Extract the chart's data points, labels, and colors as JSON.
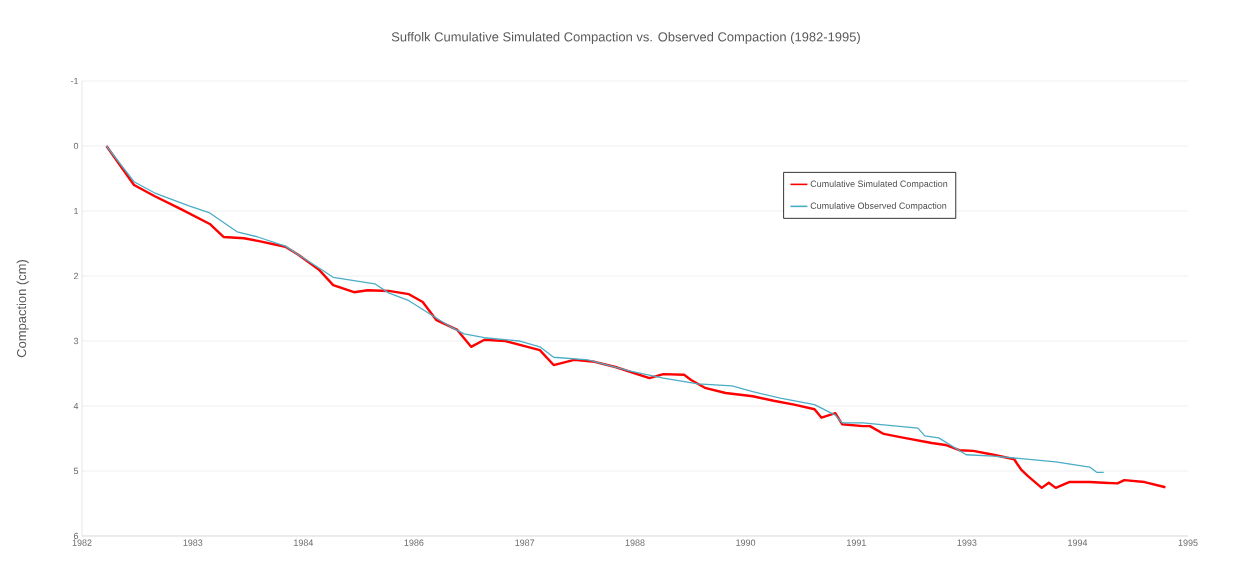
{
  "chart_data": {
    "type": "line",
    "title": "Suffolk Cumulative Simulated Compaction vs. Observed Compaction (1982-1995)",
    "ylabel": "Compaction (cm)",
    "xlim": [
      "1982-04-15",
      "1995-09-09"
    ],
    "xticks": [
      {
        "value": "1982-04-15",
        "label": "1982"
      },
      {
        "value": "1983-08-18",
        "label": "1983"
      },
      {
        "value": "1984-12-20",
        "label": "1984"
      },
      {
        "value": "1986-04-23",
        "label": "1986"
      },
      {
        "value": "1987-08-26",
        "label": "1987"
      },
      {
        "value": "1988-12-27",
        "label": "1988"
      },
      {
        "value": "1990-04-30",
        "label": "1990"
      },
      {
        "value": "1991-09-02",
        "label": "1991"
      },
      {
        "value": "1993-01-04",
        "label": "1993"
      },
      {
        "value": "1994-05-08",
        "label": "1994"
      },
      {
        "value": "1995-09-09",
        "label": "1995"
      }
    ],
    "ylim": [
      6,
      -1
    ],
    "yticks": [
      -1,
      0,
      1,
      2,
      3,
      4,
      5,
      6
    ],
    "grid": "y",
    "legend": "top right",
    "marker": "none",
    "line_style": "solid",
    "series": [
      {
        "name": "Cumulative Simulated Compaction",
        "color": "#ff0000",
        "x": [
          "1982-08",
          "1982-12",
          "1983-03",
          "1983-07",
          "1983-11",
          "1984-01",
          "1984-04",
          "1984-06",
          "1984-10",
          "1984-12",
          "1985-03",
          "1985-05",
          "1985-08",
          "1985-10",
          "1986-01",
          "1986-04",
          "1986-06",
          "1986-08",
          "1986-11",
          "1987-01",
          "1987-03",
          "1987-06",
          "1987-11",
          "1988-01",
          "1988-04",
          "1988-07",
          "1988-10",
          "1989-03",
          "1989-05",
          "1989-08",
          "1989-09",
          "1989-11",
          "1990-02",
          "1990-06",
          "1990-09",
          "1990-12",
          "1991-03",
          "1991-04",
          "1991-06",
          "1991-07",
          "1991-10",
          "1991-11",
          "1992-01",
          "1992-04",
          "1992-08",
          "1992-10",
          "1992-12",
          "1993-02",
          "1993-05",
          "1993-08",
          "1993-09",
          "1993-10",
          "1993-12",
          "1994-01",
          "1994-02",
          "1994-04",
          "1994-07",
          "1994-09",
          "1994-11",
          "1994-12",
          "1995-03",
          "1995-06"
        ],
        "values": [
          0,
          0.6,
          0.77,
          0.98,
          1.2,
          1.4,
          1.42,
          1.46,
          1.55,
          1.68,
          1.91,
          2.14,
          2.25,
          2.22,
          2.23,
          2.28,
          2.4,
          2.68,
          2.83,
          3.09,
          2.98,
          3.0,
          3.14,
          3.37,
          3.29,
          3.32,
          3.4,
          3.57,
          3.51,
          3.52,
          3.6,
          3.72,
          3.8,
          3.85,
          3.92,
          3.98,
          4.05,
          4.18,
          4.11,
          4.28,
          4.31,
          4.31,
          4.43,
          4.49,
          4.57,
          4.6,
          4.68,
          4.69,
          4.75,
          4.82,
          4.98,
          5.08,
          5.26,
          5.18,
          5.26,
          5.17,
          5.17,
          5.18,
          5.19,
          5.14,
          5.17,
          5.25
        ]
      },
      {
        "name": "Cumulative Observed Compaction",
        "color": "#4bacc6",
        "x": [
          "1982-08",
          "1982-12",
          "1983-03",
          "1983-08",
          "1983-11",
          "1984-03",
          "1984-06",
          "1984-10",
          "1984-12",
          "1985-03",
          "1985-05",
          "1985-08",
          "1985-11",
          "1986-01",
          "1986-04",
          "1986-07",
          "1986-10",
          "1986-12",
          "1987-03",
          "1987-08",
          "1987-11",
          "1988-01",
          "1988-06",
          "1988-12",
          "1989-05",
          "1989-10",
          "1990-03",
          "1990-06",
          "1990-10",
          "1991-03",
          "1991-06",
          "1991-07",
          "1991-10",
          "1992-06",
          "1992-07",
          "1992-09",
          "1993-01",
          "1993-05",
          "1993-08",
          "1994-02",
          "1994-07",
          "1994-08",
          "1994-09"
        ],
        "values": [
          0,
          0.55,
          0.72,
          0.92,
          1.03,
          1.32,
          1.4,
          1.54,
          1.68,
          1.88,
          2.02,
          2.07,
          2.12,
          2.26,
          2.38,
          2.58,
          2.78,
          2.89,
          2.95,
          3.0,
          3.09,
          3.25,
          3.29,
          3.46,
          3.57,
          3.66,
          3.69,
          3.78,
          3.88,
          3.98,
          4.14,
          4.26,
          4.26,
          4.34,
          4.46,
          4.49,
          4.75,
          4.77,
          4.8,
          4.86,
          4.94,
          5.02,
          5.02
        ]
      }
    ]
  }
}
